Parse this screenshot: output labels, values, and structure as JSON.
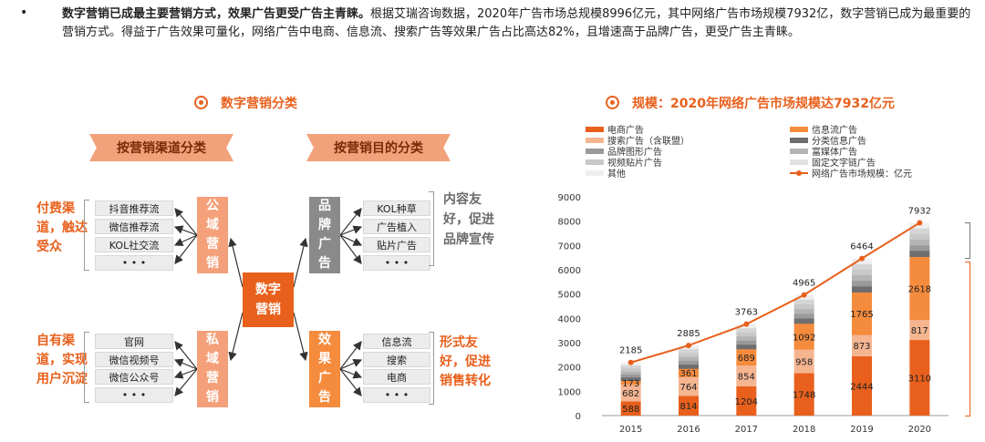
{
  "intro": {
    "bullet": "•",
    "bold_text": "数字营销已成最主要营销方式，效果广告更受广告主青睐。",
    "body_text": "根据艾瑞咨询数据，2020年广告市场总规模8996亿元，其中网络广告市场规模7932亿，数字营销已成为最重要的营销方式。得益于广告效果可量化，网络广告中电商、信息流、搜索广告等效果广告占比高达82%，且增速高于品牌广告，更受广告主青睐。"
  },
  "diagram": {
    "title": "数字营销分类",
    "banner_channel": "按营销渠道分类",
    "banner_purpose": "按营销目的分类",
    "center": "数字营销",
    "public_domain": "公域营销",
    "private_domain": "私域营销",
    "brand_ads": "品牌广告",
    "effect_ads": "效果广告",
    "paid_text": "付费渠道，触达受众",
    "own_text": "自有渠道，实现用户沉淀",
    "public_items": [
      "抖音推荐流",
      "微信推荐流",
      "KOL社交流",
      "• • •"
    ],
    "private_items": [
      "官网",
      "微信视频号",
      "微信公众号",
      "• • •"
    ],
    "brand_items": [
      "KOL种草",
      "广告植入",
      "贴片广告",
      "• • •"
    ],
    "effect_items": [
      "信息流",
      "搜索",
      "电商",
      "• • •"
    ],
    "brand_desc": "内容友好，促进品牌宣传",
    "effect_desc": "形式友好，促进销售转化"
  },
  "chart_title": "规模：2020年网络广告市场规模达7932亿元",
  "legend": {
    "ecommerce": "电商广告",
    "feed": "信息流广告",
    "search": "搜索广告（含联盟）",
    "classified": "分类信息广告",
    "brand_graphic": "品牌图形广告",
    "rich_media": "富媒体广告",
    "video_patch": "视频贴片广告",
    "text_link": "固定文字链广告",
    "other": "其他",
    "total_line": "网络广告市场规模：亿元"
  },
  "colors": {
    "ecommerce": "#e8601c",
    "feed": "#f58b3c",
    "search": "#f5b591",
    "classified": "#6e6e6e",
    "brand_graphic": "#9a9a9a",
    "rich_media": "#b4b4b4",
    "video_patch": "#c8c8c8",
    "text_link": "#e2e2e2",
    "other": "#efefef",
    "line": "#e8601c"
  },
  "chart_data": {
    "type": "bar",
    "categories": [
      "2015",
      "2016",
      "2017",
      "2018",
      "2019",
      "2020"
    ],
    "ylim": [
      0,
      9000
    ],
    "yticks": [
      "0",
      "1000",
      "2000",
      "3000",
      "4000",
      "5000",
      "6000",
      "7000",
      "8000",
      "9000"
    ],
    "series": [
      {
        "name": "电商广告",
        "key": "ecommerce",
        "values": [
          588,
          814,
          1204,
          1748,
          2444,
          3110
        ]
      },
      {
        "name": "搜索广告（含联盟）",
        "key": "search",
        "values": [
          682,
          764,
          854,
          958,
          873,
          817
        ]
      },
      {
        "name": "信息流广告",
        "key": "feed",
        "values": [
          173,
          361,
          689,
          1092,
          1765,
          2618
        ]
      },
      {
        "name": "其他",
        "key": "other",
        "values": [
          742,
          946,
          1016,
          1167,
          1382,
          1387
        ]
      }
    ],
    "labels": [
      {
        "category": "2015",
        "series": "ecommerce",
        "value": "588"
      },
      {
        "category": "2015",
        "series": "feed",
        "value": "173"
      },
      {
        "category": "2015",
        "series": "search",
        "value": "682"
      },
      {
        "category": "2016",
        "series": "ecommerce",
        "value": "814"
      },
      {
        "category": "2016",
        "series": "feed",
        "value": "361"
      },
      {
        "category": "2016",
        "series": "search",
        "value": "764"
      },
      {
        "category": "2017",
        "series": "ecommerce",
        "value": "1204"
      },
      {
        "category": "2017",
        "series": "feed",
        "value": "689"
      },
      {
        "category": "2017",
        "series": "search",
        "value": "854"
      },
      {
        "category": "2018",
        "series": "ecommerce",
        "value": "1748"
      },
      {
        "category": "2018",
        "series": "feed",
        "value": "1092"
      },
      {
        "category": "2018",
        "series": "search",
        "value": "958"
      },
      {
        "category": "2019",
        "series": "ecommerce",
        "value": "2444"
      },
      {
        "category": "2019",
        "series": "feed",
        "value": "1765"
      },
      {
        "category": "2019",
        "series": "search",
        "value": "873"
      },
      {
        "category": "2020",
        "series": "ecommerce",
        "value": "3110"
      },
      {
        "category": "2020",
        "series": "feed",
        "value": "2618"
      },
      {
        "category": "2020",
        "series": "search",
        "value": "817"
      }
    ],
    "line": {
      "name": "网络广告市场规模：亿元",
      "values": [
        2185,
        2885,
        3763,
        4965,
        6464,
        7932
      ]
    }
  }
}
